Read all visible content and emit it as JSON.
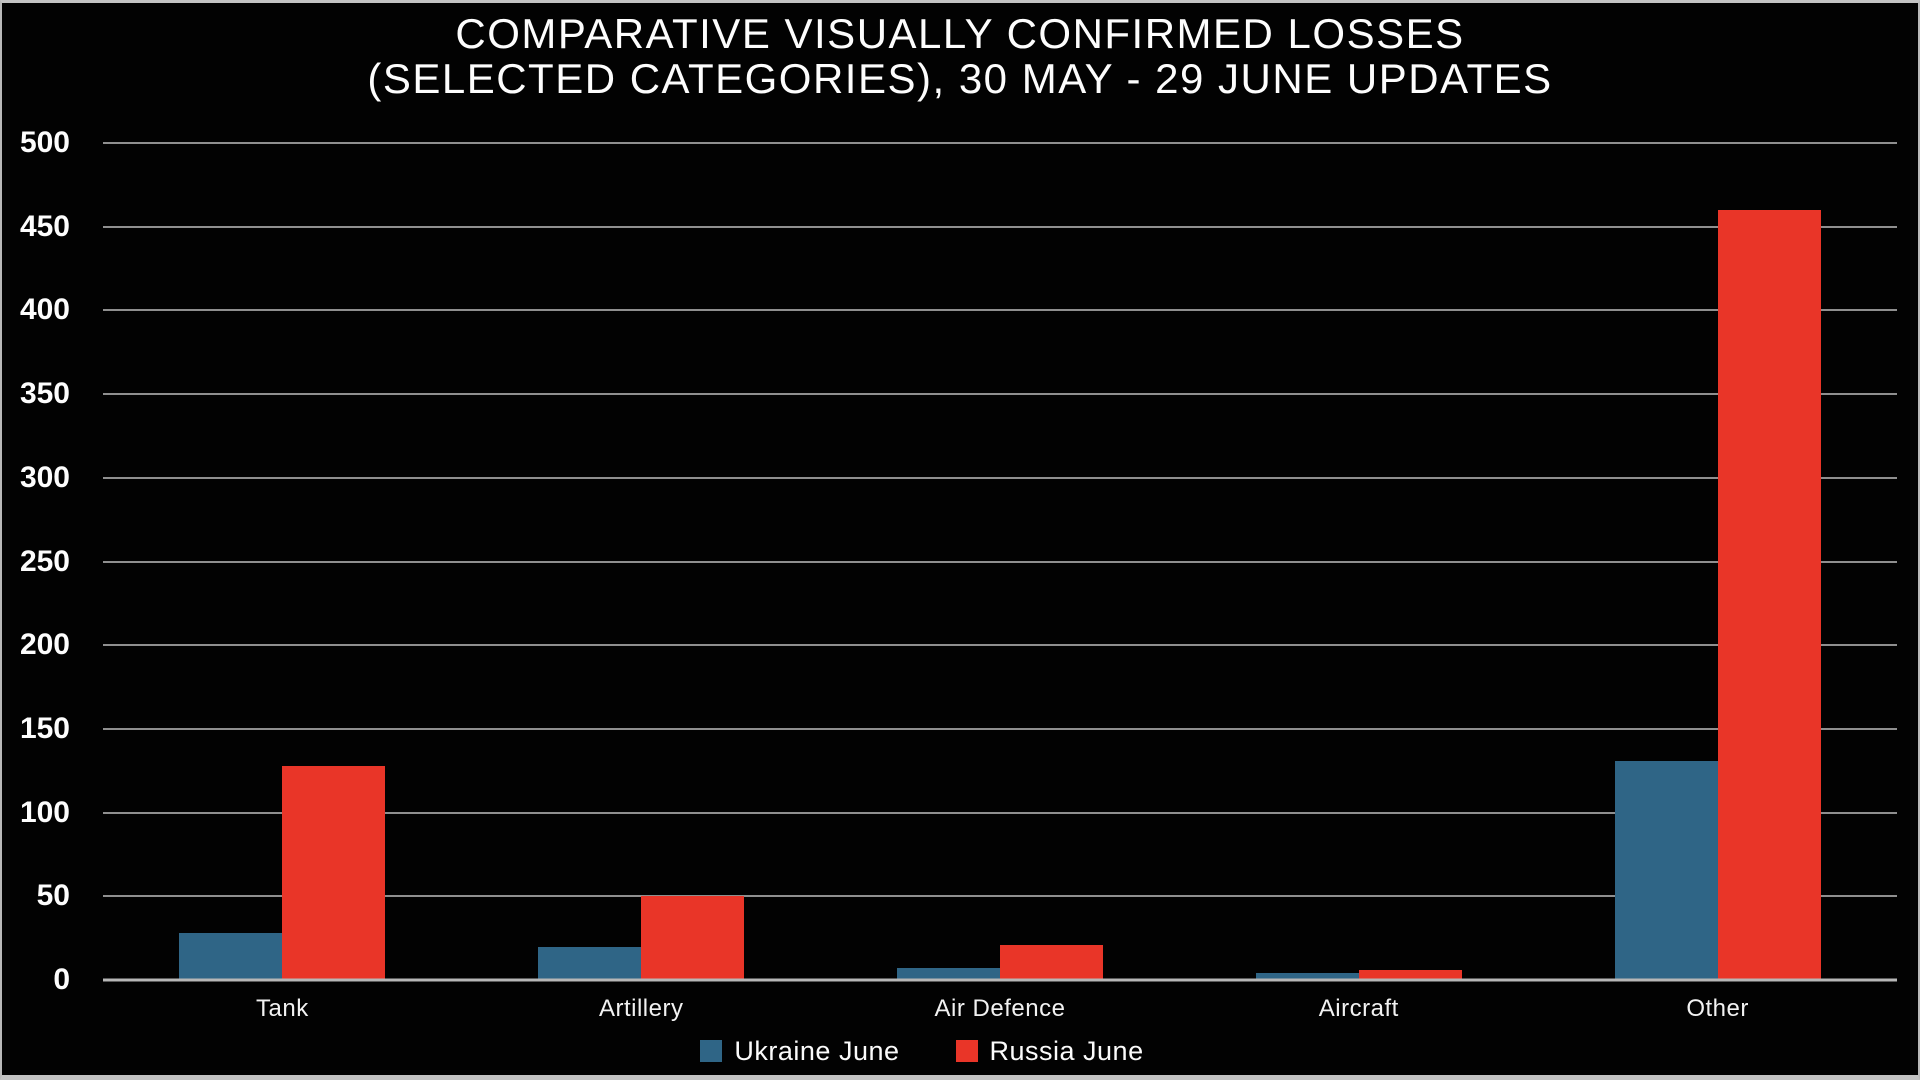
{
  "chart_data": {
    "type": "bar",
    "title_line1": "COMPARATIVE VISUALLY CONFIRMED LOSSES",
    "title_line2": "(SELECTED CATEGORIES), 30 MAY - 29 JUNE UPDATES",
    "categories": [
      "Tank",
      "Artillery",
      "Air Defence",
      "Aircraft",
      "Other"
    ],
    "series": [
      {
        "name": "Ukraine June",
        "color": "#2f6586",
        "values": [
          28,
          20,
          7,
          4,
          131
        ]
      },
      {
        "name": "Russia June",
        "color": "#e93528",
        "values": [
          128,
          50,
          21,
          6,
          460
        ]
      }
    ],
    "ylim": [
      0,
      500
    ],
    "yticks": [
      0,
      50,
      100,
      150,
      200,
      250,
      300,
      350,
      400,
      450,
      500
    ],
    "xlabel": "",
    "ylabel": "",
    "grid": true,
    "legend_position": "bottom",
    "background_color": "#020202",
    "gridline_color": "#8f8f8f",
    "text_color": "#ffffff"
  }
}
